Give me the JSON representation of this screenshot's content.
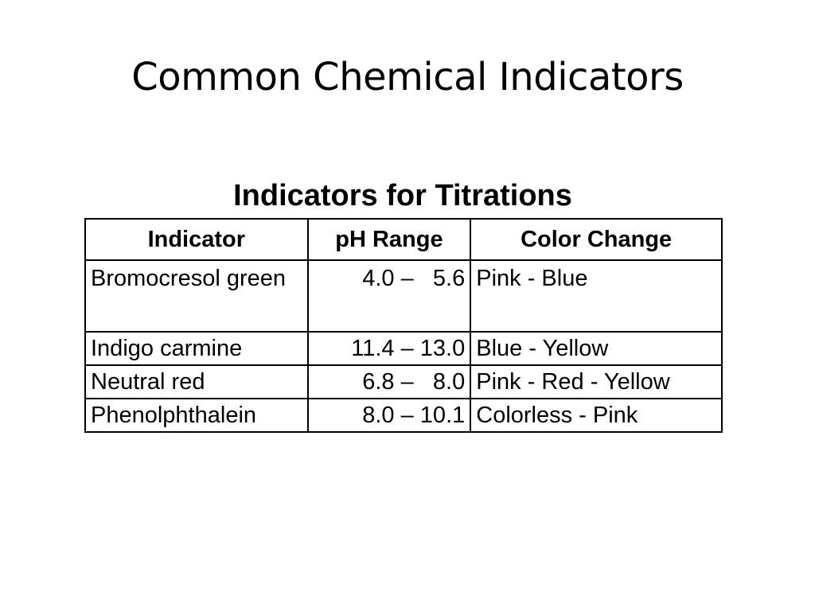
{
  "slide": {
    "title": "Common Chemical Indicators"
  },
  "table": {
    "title": "Indicators for Titrations",
    "headers": [
      "Indicator",
      "pH Range",
      "Color Change"
    ],
    "rows": [
      {
        "indicator": "Bromocresol green",
        "ph_range": "4.0 –   5.6",
        "color_change": "Pink - Blue"
      },
      {
        "indicator": "Indigo carmine",
        "ph_range": "11.4 – 13.0",
        "color_change": "Blue - Yellow"
      },
      {
        "indicator": "Neutral red",
        "ph_range": "6.8 –   8.0",
        "color_change": "Pink - Red - Yellow"
      },
      {
        "indicator": "Phenolphthalein",
        "ph_range": "8.0 – 10.1",
        "color_change": "Colorless - Pink"
      }
    ]
  }
}
